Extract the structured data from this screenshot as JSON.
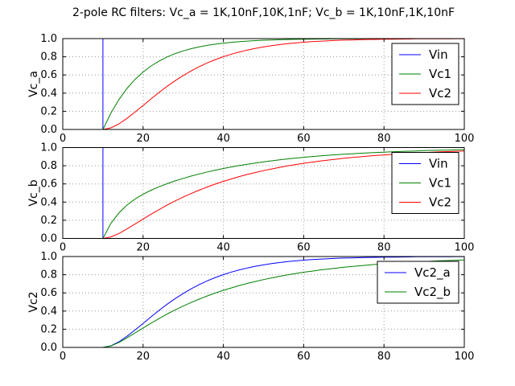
{
  "figure": {
    "title": "2-pole RC filters: Vc_a = 1K,10nF,10K,1nF; Vc_b = 1K,10nF,1K,10nF"
  },
  "colors": {
    "blue": "#0000ff",
    "green": "#008000",
    "red": "#ff0000",
    "grid": "#999999",
    "frame": "#000000",
    "background": "#ffffff",
    "text": "#000000"
  },
  "chart_data": [
    {
      "type": "line",
      "ylabel": "Vc_a",
      "xlim": [
        0,
        100
      ],
      "ylim": [
        0,
        1
      ],
      "xticks": [
        0,
        20,
        40,
        60,
        80,
        100
      ],
      "xtick_labels": [
        "0",
        "20",
        "40",
        "60",
        "80",
        "100"
      ],
      "yticks": [
        0,
        0.2,
        0.4,
        0.6,
        0.8,
        1
      ],
      "ytick_labels": [
        "0.0",
        "0.2",
        "0.4",
        "0.6",
        "0.8",
        "1.0"
      ],
      "grid": true,
      "legend": {
        "position": "upper right",
        "entries": [
          "Vin",
          "Vc1",
          "Vc2"
        ]
      },
      "series": [
        {
          "name": "Vin",
          "color": "#0000ff",
          "x": [
            0,
            10,
            10,
            100
          ],
          "y": [
            0,
            0,
            1,
            1
          ]
        },
        {
          "name": "Vc1",
          "color": "#008000",
          "x": [
            0,
            10,
            12,
            14,
            16,
            18,
            20,
            22,
            24,
            26,
            28,
            30,
            32,
            34,
            36,
            38,
            40,
            42,
            44,
            46,
            48,
            50,
            52,
            54,
            56,
            58,
            60,
            62,
            64,
            66,
            68,
            70,
            72,
            74,
            76,
            78,
            80,
            82,
            84,
            86,
            88,
            90,
            92,
            94,
            96,
            98,
            100
          ],
          "y": [
            0,
            0,
            0.181,
            0.33,
            0.451,
            0.551,
            0.632,
            0.699,
            0.753,
            0.798,
            0.835,
            0.865,
            0.889,
            0.909,
            0.926,
            0.939,
            0.95,
            0.959,
            0.967,
            0.973,
            0.978,
            0.982,
            0.985,
            0.988,
            0.99,
            0.992,
            0.993,
            0.995,
            0.996,
            0.996,
            0.997,
            0.998,
            0.998,
            0.998,
            0.999,
            0.999,
            0.999,
            0.999,
            0.999,
            1.0,
            1.0,
            1.0,
            1.0,
            1.0,
            1.0,
            1.0,
            1.0
          ]
        },
        {
          "name": "Vc2",
          "color": "#ff0000",
          "x": [
            0,
            10,
            12,
            14,
            16,
            18,
            20,
            22,
            24,
            26,
            28,
            30,
            32,
            34,
            36,
            38,
            40,
            42,
            44,
            46,
            48,
            50,
            52,
            54,
            56,
            58,
            60,
            62,
            64,
            66,
            68,
            70,
            72,
            74,
            76,
            78,
            80,
            82,
            84,
            86,
            88,
            90,
            92,
            94,
            96,
            98,
            100
          ],
          "y": [
            0,
            0,
            0.018,
            0.062,
            0.122,
            0.191,
            0.264,
            0.337,
            0.408,
            0.475,
            0.537,
            0.594,
            0.645,
            0.692,
            0.733,
            0.769,
            0.801,
            0.829,
            0.853,
            0.874,
            0.893,
            0.908,
            0.922,
            0.934,
            0.944,
            0.952,
            0.96,
            0.966,
            0.971,
            0.976,
            0.98,
            0.983,
            0.985,
            0.988,
            0.99,
            0.991,
            0.993,
            0.994,
            0.995,
            0.996,
            0.997,
            0.997,
            0.998,
            0.998,
            0.998,
            0.999,
            0.999
          ]
        }
      ]
    },
    {
      "type": "line",
      "ylabel": "Vc_b",
      "xlim": [
        0,
        100
      ],
      "ylim": [
        0,
        1
      ],
      "xticks": [
        0,
        20,
        40,
        60,
        80,
        100
      ],
      "xtick_labels": [
        "0",
        "20",
        "40",
        "60",
        "80",
        "100"
      ],
      "yticks": [
        0,
        0.2,
        0.4,
        0.6,
        0.8,
        1
      ],
      "ytick_labels": [
        "0.0",
        "0.2",
        "0.4",
        "0.6",
        "0.8",
        "1.0"
      ],
      "grid": true,
      "legend": {
        "position": "upper right",
        "entries": [
          "Vin",
          "Vc1",
          "Vc2"
        ]
      },
      "series": [
        {
          "name": "Vin",
          "color": "#0000ff",
          "x": [
            0,
            10,
            10,
            100
          ],
          "y": [
            0,
            0,
            1,
            1
          ]
        },
        {
          "name": "Vc1",
          "color": "#008000",
          "x": [
            0,
            10,
            12,
            14,
            16,
            18,
            20,
            22,
            24,
            26,
            28,
            30,
            32,
            34,
            36,
            38,
            40,
            42,
            44,
            46,
            48,
            50,
            52,
            54,
            56,
            58,
            60,
            62,
            64,
            66,
            68,
            70,
            72,
            74,
            76,
            78,
            80,
            82,
            84,
            86,
            88,
            90,
            92,
            94,
            96,
            98,
            100
          ],
          "y": [
            0,
            0,
            0.166,
            0.282,
            0.367,
            0.433,
            0.486,
            0.531,
            0.569,
            0.603,
            0.634,
            0.661,
            0.687,
            0.71,
            0.732,
            0.751,
            0.77,
            0.787,
            0.803,
            0.817,
            0.83,
            0.843,
            0.854,
            0.865,
            0.875,
            0.884,
            0.893,
            0.901,
            0.908,
            0.915,
            0.921,
            0.927,
            0.932,
            0.937,
            0.942,
            0.946,
            0.95,
            0.954,
            0.957,
            0.96,
            0.963,
            0.966,
            0.969,
            0.971,
            0.973,
            0.975,
            0.977
          ]
        },
        {
          "name": "Vc2",
          "color": "#ff0000",
          "x": [
            0,
            10,
            12,
            14,
            16,
            18,
            20,
            22,
            24,
            26,
            28,
            30,
            32,
            34,
            36,
            38,
            40,
            42,
            44,
            46,
            48,
            50,
            52,
            54,
            56,
            58,
            60,
            62,
            64,
            66,
            68,
            70,
            72,
            74,
            76,
            78,
            80,
            82,
            84,
            86,
            88,
            90,
            92,
            94,
            96,
            98,
            100
          ],
          "y": [
            0,
            0,
            0.017,
            0.055,
            0.104,
            0.158,
            0.213,
            0.267,
            0.318,
            0.367,
            0.413,
            0.455,
            0.495,
            0.532,
            0.566,
            0.598,
            0.628,
            0.655,
            0.681,
            0.704,
            0.726,
            0.746,
            0.765,
            0.782,
            0.798,
            0.813,
            0.827,
            0.839,
            0.851,
            0.862,
            0.872,
            0.882,
            0.89,
            0.898,
            0.906,
            0.913,
            0.919,
            0.925,
            0.931,
            0.936,
            0.941,
            0.945,
            0.949,
            0.953,
            0.956,
            0.959,
            0.962
          ]
        }
      ]
    },
    {
      "type": "line",
      "ylabel": "Vc2",
      "xlim": [
        0,
        100
      ],
      "ylim": [
        0,
        1
      ],
      "xticks": [
        0,
        20,
        40,
        60,
        80,
        100
      ],
      "xtick_labels": [
        "0",
        "20",
        "40",
        "60",
        "80",
        "100"
      ],
      "yticks": [
        0,
        0.2,
        0.4,
        0.6,
        0.8,
        1
      ],
      "ytick_labels": [
        "0.0",
        "0.2",
        "0.4",
        "0.6",
        "0.8",
        "1.0"
      ],
      "grid": true,
      "legend": {
        "position": "upper right",
        "entries": [
          "Vc2_a",
          "Vc2_b"
        ]
      },
      "series": [
        {
          "name": "Vc2_a",
          "color": "#0000ff",
          "x": [
            0,
            10,
            12,
            14,
            16,
            18,
            20,
            22,
            24,
            26,
            28,
            30,
            32,
            34,
            36,
            38,
            40,
            42,
            44,
            46,
            48,
            50,
            52,
            54,
            56,
            58,
            60,
            62,
            64,
            66,
            68,
            70,
            72,
            74,
            76,
            78,
            80,
            82,
            84,
            86,
            88,
            90,
            92,
            94,
            96,
            98,
            100
          ],
          "y": [
            0,
            0,
            0.018,
            0.062,
            0.122,
            0.191,
            0.264,
            0.337,
            0.408,
            0.475,
            0.537,
            0.594,
            0.645,
            0.692,
            0.733,
            0.769,
            0.801,
            0.829,
            0.853,
            0.874,
            0.893,
            0.908,
            0.922,
            0.934,
            0.944,
            0.952,
            0.96,
            0.966,
            0.971,
            0.976,
            0.98,
            0.983,
            0.985,
            0.988,
            0.99,
            0.991,
            0.993,
            0.994,
            0.995,
            0.996,
            0.997,
            0.997,
            0.998,
            0.998,
            0.998,
            0.999,
            0.999
          ]
        },
        {
          "name": "Vc2_b",
          "color": "#008000",
          "x": [
            0,
            10,
            12,
            14,
            16,
            18,
            20,
            22,
            24,
            26,
            28,
            30,
            32,
            34,
            36,
            38,
            40,
            42,
            44,
            46,
            48,
            50,
            52,
            54,
            56,
            58,
            60,
            62,
            64,
            66,
            68,
            70,
            72,
            74,
            76,
            78,
            80,
            82,
            84,
            86,
            88,
            90,
            92,
            94,
            96,
            98,
            100
          ],
          "y": [
            0,
            0,
            0.017,
            0.055,
            0.104,
            0.158,
            0.213,
            0.267,
            0.318,
            0.367,
            0.413,
            0.455,
            0.495,
            0.532,
            0.566,
            0.598,
            0.628,
            0.655,
            0.681,
            0.704,
            0.726,
            0.746,
            0.765,
            0.782,
            0.798,
            0.813,
            0.827,
            0.839,
            0.851,
            0.862,
            0.872,
            0.882,
            0.89,
            0.898,
            0.906,
            0.913,
            0.919,
            0.925,
            0.931,
            0.936,
            0.941,
            0.945,
            0.949,
            0.953,
            0.956,
            0.959,
            0.962
          ]
        }
      ]
    }
  ]
}
